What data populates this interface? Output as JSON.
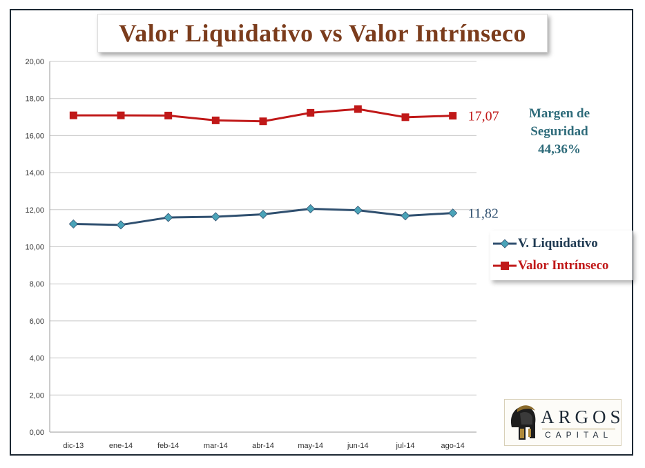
{
  "chart_data": {
    "type": "line",
    "title": "Valor Liquidativo vs Valor Intrínseco",
    "categories": [
      "dic-13",
      "ene-14",
      "feb-14",
      "mar-14",
      "abr-14",
      "may-14",
      "jun-14",
      "jul-14",
      "ago-14"
    ],
    "series": [
      {
        "name": "V. Liquidativo",
        "color": "#2f4f6f",
        "marker_color": "#4aa3b8",
        "marker": "diamond",
        "values": [
          11.23,
          11.18,
          11.58,
          11.62,
          11.75,
          12.05,
          11.97,
          11.67,
          11.82
        ],
        "end_label": "11,82",
        "end_label_color": "#2f4f6f"
      },
      {
        "name": "Valor Intrínseco",
        "color": "#c01818",
        "marker_color": "#c01818",
        "marker": "square",
        "values": [
          17.09,
          17.09,
          17.08,
          16.82,
          16.77,
          17.23,
          17.43,
          16.99,
          17.07
        ],
        "end_label": "17,07",
        "end_label_color": "#c01818"
      }
    ],
    "ylim": [
      0,
      20
    ],
    "yticks": [
      0,
      2,
      4,
      6,
      8,
      10,
      12,
      14,
      16,
      18,
      20
    ],
    "ytick_labels": [
      "0,00",
      "2,00",
      "4,00",
      "6,00",
      "8,00",
      "10,00",
      "12,00",
      "14,00",
      "16,00",
      "18,00",
      "20,00"
    ],
    "xlabel": "",
    "ylabel": "",
    "grid": "horizontal",
    "legend_position": "right"
  },
  "annotation": {
    "line1": "Margen de",
    "line2": "Seguridad",
    "line3": "44,36%",
    "color": "#2e6b7a"
  },
  "logo": {
    "name": "ARGOS",
    "sub": "CAPITAL"
  }
}
